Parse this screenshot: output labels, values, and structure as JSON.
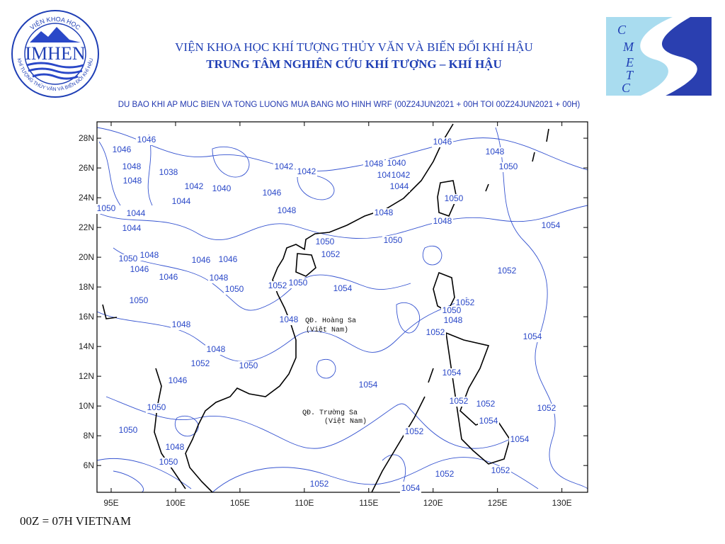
{
  "header": {
    "institute": "VIỆN KHOA HỌC KHÍ TƯỢNG THỦY VĂN VÀ BIẾN ĐỔI KHÍ HẬU",
    "center": "TRUNG TÂM NGHIÊN CỨU KHÍ TƯỢNG – KHÍ HẬU"
  },
  "logos": {
    "imhen": {
      "name": "IMHEN",
      "arc_top": "VIỆN KHOA HỌC",
      "arc_bottom": "KHÍ TƯỢNG THỦY VĂN VÀ BIẾN ĐỔI KHÍ HẬU"
    },
    "cmetc": {
      "letters": [
        "C",
        "M",
        "E",
        "T",
        "C"
      ]
    }
  },
  "map": {
    "title": "DU BAO KHI AP MUC BIEN VA TONG LUONG MUA BANG MO HINH WRF (00Z24JUN2021 + 00H TOI 00Z24JUN2021 + 00H)",
    "lon_range": [
      93.9,
      132
    ],
    "lat_range": [
      4.2,
      29.1
    ],
    "lon_ticks": [
      {
        "value": 95,
        "label": "95E"
      },
      {
        "value": 100,
        "label": "100E"
      },
      {
        "value": 105,
        "label": "105E"
      },
      {
        "value": 110,
        "label": "110E"
      },
      {
        "value": 115,
        "label": "115E"
      },
      {
        "value": 120,
        "label": "120E"
      },
      {
        "value": 125,
        "label": "125E"
      },
      {
        "value": 130,
        "label": "130E"
      }
    ],
    "lat_ticks": [
      {
        "value": 6,
        "label": "6N"
      },
      {
        "value": 8,
        "label": "8N"
      },
      {
        "value": 10,
        "label": "10N"
      },
      {
        "value": 12,
        "label": "12N"
      },
      {
        "value": 14,
        "label": "14N"
      },
      {
        "value": 16,
        "label": "16N"
      },
      {
        "value": 18,
        "label": "18N"
      },
      {
        "value": 20,
        "label": "20N"
      },
      {
        "value": 22,
        "label": "22N"
      },
      {
        "value": 24,
        "label": "24N"
      },
      {
        "value": 26,
        "label": "26N"
      },
      {
        "value": 28,
        "label": "28N"
      }
    ],
    "contour_labels": [
      1046,
      1046,
      1048,
      1038,
      1048,
      1042,
      1040,
      1044,
      1046,
      1042,
      1042,
      1048,
      1046,
      1040,
      1042,
      1044,
      1046,
      1048,
      1050,
      1050,
      1048,
      1054,
      1050,
      1044,
      1044,
      1048,
      1048,
      1050,
      1050,
      1052,
      1050,
      1048,
      1046,
      1046,
      1046,
      1046,
      1048,
      1050,
      1052,
      1050,
      1054,
      1052,
      1050,
      1052,
      1050,
      1048,
      1052,
      1048,
      1048,
      1054,
      1048,
      1052,
      1050,
      1054,
      1046,
      1054,
      1050,
      1052,
      1052,
      1052,
      1054,
      1050,
      1052,
      1048,
      1054,
      1050,
      1052,
      1052,
      1052,
      1054
    ],
    "places": [
      "QĐ. Hoàng Sa",
      "(Việt Nam)",
      "QĐ. Trường Sa",
      "(Việt Nam)"
    ]
  },
  "footer": "00Z = 07H VIETNAM"
}
